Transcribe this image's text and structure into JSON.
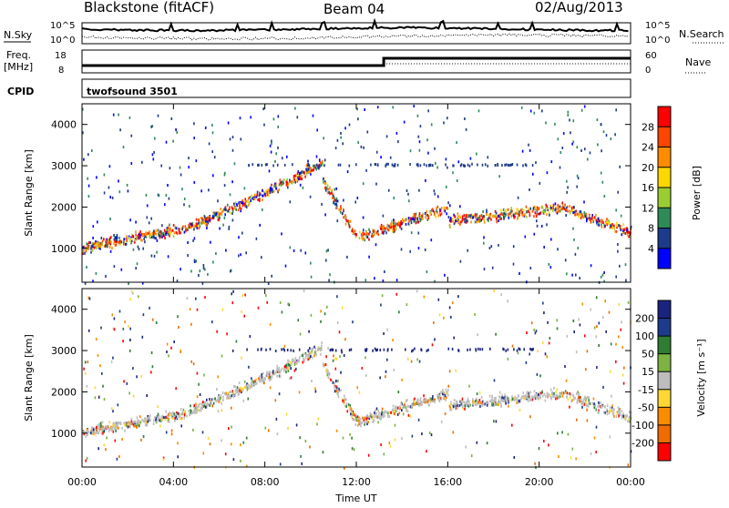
{
  "header": {
    "station": "Blackstone (fitACF)",
    "beam": "Beam 04",
    "date": "02/Aug/2013"
  },
  "aux_panels": {
    "nsky_label": "N.Sky",
    "nsearch_label": "N.Search",
    "noise_ticks_left": [
      "10^5",
      "10^0"
    ],
    "noise_ticks_right": [
      "10^5",
      "10^0"
    ],
    "freq_label_1": "Freq.",
    "freq_label_2": "[MHz]",
    "freq_ticks": [
      "18",
      "8"
    ],
    "nave_label": "Nave",
    "nave_ticks": [
      "60",
      "0"
    ],
    "cpid_label": "CPID",
    "cpid_value": "twofsound 3501"
  },
  "chart_data": [
    {
      "type": "heatmap",
      "quantity": "power",
      "ylabel": "Slant Range [km]",
      "yticks": [
        1000,
        2000,
        3000,
        4000
      ],
      "ylim": [
        180,
        4500
      ],
      "xlim_hours": [
        0,
        24
      ],
      "colorbar_label": "Power [dB]",
      "colorbar_ticks": [
        "28",
        "24",
        "20",
        "16",
        "12",
        "8",
        "4"
      ],
      "colorbar_colors": [
        "#ff0000",
        "#ff4500",
        "#ff8c00",
        "#ffd700",
        "#9acd32",
        "#2e8b57",
        "#1e3a8a",
        "#0000ff"
      ],
      "scatter_bands": [
        {
          "t_start": 0,
          "t_end": 4.5,
          "range_start": 1050,
          "range_end": 1500
        },
        {
          "t_start": 4.5,
          "t_end": 7,
          "range_start": 1500,
          "range_end": 2100
        },
        {
          "t_start": 7,
          "t_end": 10.5,
          "range_start": 2100,
          "range_end": 3100
        },
        {
          "t_start": 10.5,
          "t_end": 12,
          "range_start": 2700,
          "range_end": 1300
        },
        {
          "t_start": 12,
          "t_end": 16,
          "range_start": 1300,
          "range_end": 2000
        },
        {
          "t_start": 16,
          "t_end": 21,
          "range_start": 1700,
          "range_end": 2000
        },
        {
          "t_start": 21,
          "t_end": 24,
          "range_start": 2000,
          "range_end": 1400
        }
      ]
    },
    {
      "type": "heatmap",
      "quantity": "velocity",
      "ylabel": "Slant Range [km]",
      "yticks": [
        1000,
        2000,
        3000,
        4000
      ],
      "ylim": [
        180,
        4500
      ],
      "xlim_hours": [
        0,
        24
      ],
      "colorbar_label": "Velocity [m s⁻¹]",
      "colorbar_ticks": [
        "200",
        "100",
        "50",
        "15",
        "-15",
        "-50",
        "-100",
        "-200"
      ],
      "colorbar_colors": [
        "#1a237e",
        "#1e3a8a",
        "#2e7d32",
        "#7cb342",
        "#bdbdbd",
        "#fdd835",
        "#fb8c00",
        "#ef6c00",
        "#ff0000"
      ],
      "scatter_bands": [
        {
          "t_start": 0,
          "t_end": 4.5,
          "range_start": 1050,
          "range_end": 1500
        },
        {
          "t_start": 4.5,
          "t_end": 7,
          "range_start": 1500,
          "range_end": 2100
        },
        {
          "t_start": 7,
          "t_end": 10.5,
          "range_start": 2100,
          "range_end": 3100
        },
        {
          "t_start": 10.5,
          "t_end": 12,
          "range_start": 2700,
          "range_end": 1300
        },
        {
          "t_start": 12,
          "t_end": 16,
          "range_start": 1300,
          "range_end": 2000
        },
        {
          "t_start": 16,
          "t_end": 21,
          "range_start": 1700,
          "range_end": 2000
        },
        {
          "t_start": 21,
          "t_end": 24,
          "range_start": 2000,
          "range_end": 1400
        }
      ]
    }
  ],
  "xaxis": {
    "xlabel": "Time UT",
    "xtick_labels": [
      "00:00",
      "04:00",
      "08:00",
      "12:00",
      "16:00",
      "20:00",
      "00:00"
    ]
  }
}
